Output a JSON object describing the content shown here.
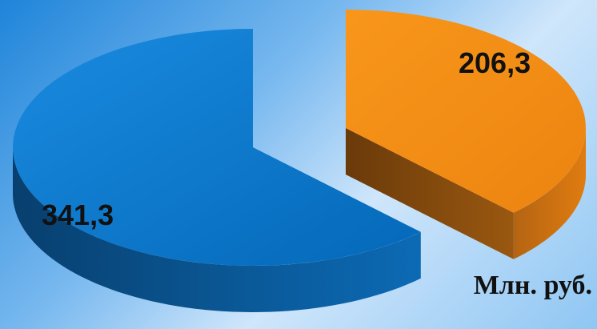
{
  "chart_data": {
    "type": "pie",
    "style": "3d-exploded",
    "slices": [
      {
        "value": 341.3,
        "label": "341,3",
        "color": "#0676c8"
      },
      {
        "value": 206.3,
        "label": "206,3",
        "color": "#f38e12"
      }
    ],
    "unit_label": "Млн. руб.",
    "legend": "none"
  }
}
